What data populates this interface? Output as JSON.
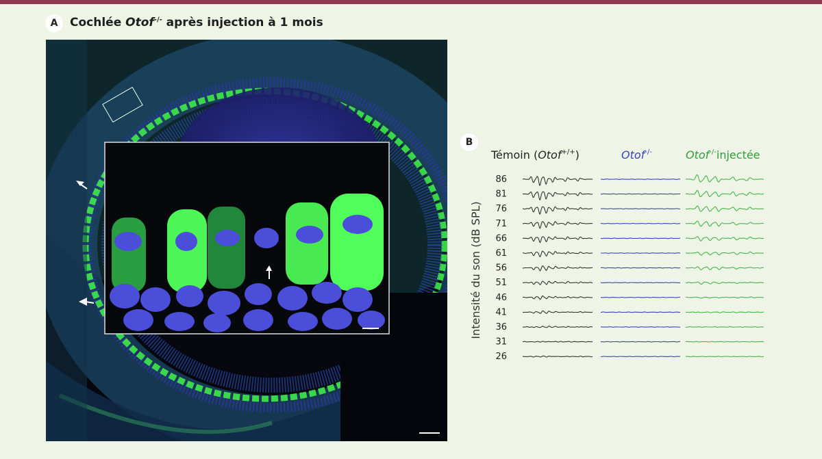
{
  "panel_a": {
    "letter": "A",
    "title_prefix": "Cochlée ",
    "title_gene": "Otof",
    "title_sup": "-/-",
    "title_suffix": " après injection à 1 mois"
  },
  "panel_b": {
    "letter": "B",
    "ylabel": "Intensité du son (dB SPL)",
    "levels": [
      "86",
      "81",
      "76",
      "71",
      "66",
      "61",
      "56",
      "51",
      "46",
      "41",
      "36",
      "31",
      "26"
    ],
    "columns": [
      {
        "label_pre": "Témoin (",
        "label_gene": "Otof",
        "label_sup": "+/+",
        "label_post": ")",
        "color": "#333333",
        "response": "wild-type"
      },
      {
        "label_pre": "",
        "label_gene": "Otof",
        "label_sup": "-/-",
        "label_post": "",
        "color": "#3b3fc0",
        "response": "none"
      },
      {
        "label_pre": "",
        "label_gene": "Otof",
        "label_sup": "-/-",
        "label_post": "injectée",
        "color": "#45b54a",
        "response": "restored"
      }
    ]
  },
  "colors": {
    "background": "#eef4e6",
    "top_bar": "#8d3a4e",
    "micro_background": "#06070f",
    "nuclei_blue": "#3f40c8",
    "gfp_green": "#3fe84a"
  }
}
